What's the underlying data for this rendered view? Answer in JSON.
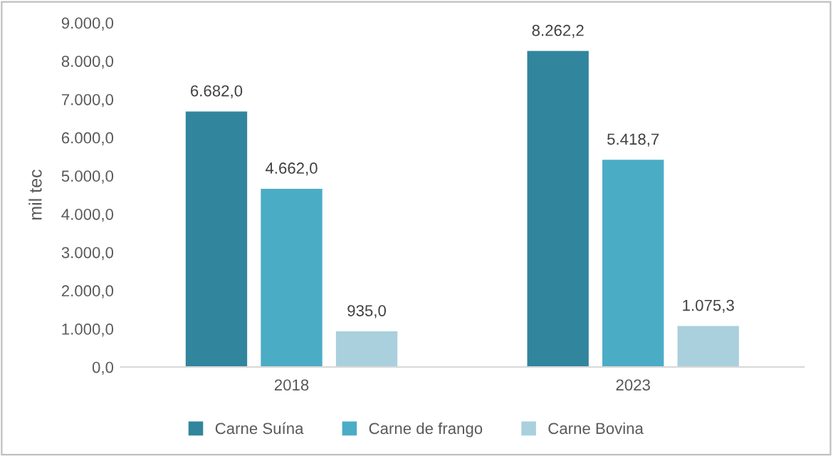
{
  "chart_data": {
    "type": "bar",
    "ylabel": "mil tec",
    "categories": [
      "2018",
      "2023"
    ],
    "series": [
      {
        "name": "Carne Suína",
        "color": "#31859c",
        "values": [
          6682.0,
          8262.2
        ],
        "value_labels": [
          "6.682,0",
          "8.262,2"
        ]
      },
      {
        "name": "Carne de frango",
        "color": "#4bacc6",
        "values": [
          4662.0,
          5418.7
        ],
        "value_labels": [
          "4.662,0",
          "5.418,7"
        ]
      },
      {
        "name": "Carne Bovina",
        "color": "#a9d0dc",
        "values": [
          935.0,
          1075.3
        ],
        "value_labels": [
          "935,0",
          "1.075,3"
        ]
      }
    ],
    "ylim": [
      0,
      9000
    ],
    "yticks": [
      {
        "value": 0,
        "label": "0,0"
      },
      {
        "value": 1000,
        "label": "1.000,0"
      },
      {
        "value": 2000,
        "label": "2.000,0"
      },
      {
        "value": 3000,
        "label": "3.000,0"
      },
      {
        "value": 4000,
        "label": "4.000,0"
      },
      {
        "value": 5000,
        "label": "5.000,0"
      },
      {
        "value": 6000,
        "label": "6.000,0"
      },
      {
        "value": 7000,
        "label": "7.000,0"
      },
      {
        "value": 8000,
        "label": "8.000,0"
      },
      {
        "value": 9000,
        "label": "9.000,0"
      }
    ],
    "grid": false,
    "legend": "bottom"
  }
}
